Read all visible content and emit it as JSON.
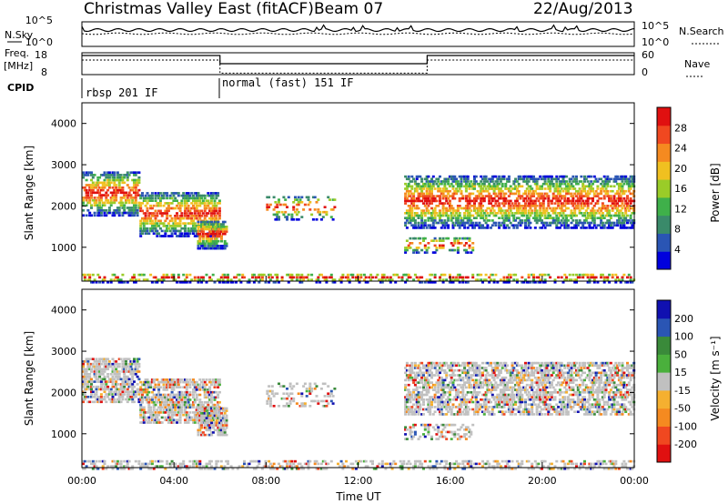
{
  "header": {
    "title": "Christmas Valley East (fitACF)",
    "beam": "Beam 07",
    "date": "22/Aug/2013"
  },
  "side_labels": {
    "nsky": "N.Sky",
    "freq": "Freq.",
    "mhz": "[MHz]",
    "cpid": "CPID",
    "nsearch": "N.Search",
    "nave": "Nave"
  },
  "cpid_labels": [
    "rbsp 201 IF",
    "normal (fast) 151 IF"
  ],
  "colors": {
    "power_scale": [
      "#0000dd",
      "#2a55b4",
      "#3a8a6a",
      "#3fb04a",
      "#9acc28",
      "#f0c020",
      "#f58a20",
      "#f04820",
      "#e01010"
    ],
    "velocity_scale": [
      "#e01010",
      "#f04820",
      "#f58a20",
      "#f5b030",
      "#c0c0c0",
      "#4ab03c",
      "#3a8a3a",
      "#2a55b4",
      "#1010b0"
    ]
  },
  "chart_data": [
    {
      "type": "line",
      "panel": "noise",
      "left_ticks": [
        "10^5",
        "10^0"
      ],
      "right_ticks": [
        "10^5",
        "10^0"
      ]
    },
    {
      "type": "line",
      "panel": "frequency",
      "left_ticks": [
        "18",
        "8"
      ],
      "right_ticks": [
        "60",
        "0"
      ],
      "freq_segments": [
        {
          "t_start": 0.0,
          "t_end": 6.0,
          "freq": 18,
          "nave": 18
        },
        {
          "t_start": 6.0,
          "t_end": 15.0,
          "freq": 13,
          "nave": 10
        },
        {
          "t_start": 15.0,
          "t_end": 24.0,
          "freq": 18,
          "nave": 18
        }
      ]
    },
    {
      "type": "heatmap",
      "panel": "power",
      "ylabel": "Slant Range [km]",
      "y_ticks": [
        1000,
        2000,
        3000,
        4000
      ],
      "ylim": [
        180,
        4500
      ],
      "xlim": [
        0,
        24
      ],
      "colorbar_label": "Power [dB]",
      "colorbar_ticks": [
        "28",
        "24",
        "20",
        "16",
        "12",
        "8",
        "4"
      ]
    },
    {
      "type": "heatmap",
      "panel": "velocity",
      "ylabel": "Slant Range [km]",
      "y_ticks": [
        1000,
        2000,
        3000,
        4000
      ],
      "ylim": [
        180,
        4500
      ],
      "xlim": [
        0,
        24
      ],
      "colorbar_label": "Velocity [m s⁻¹]",
      "colorbar_ticks": [
        "200",
        "100",
        "50",
        "15",
        "-15",
        "-50",
        "-100",
        "-200"
      ]
    }
  ],
  "x_axis": {
    "label": "Time UT",
    "ticks": [
      "00:00",
      "04:00",
      "08:00",
      "12:00",
      "16:00",
      "20:00",
      "00:00"
    ]
  }
}
